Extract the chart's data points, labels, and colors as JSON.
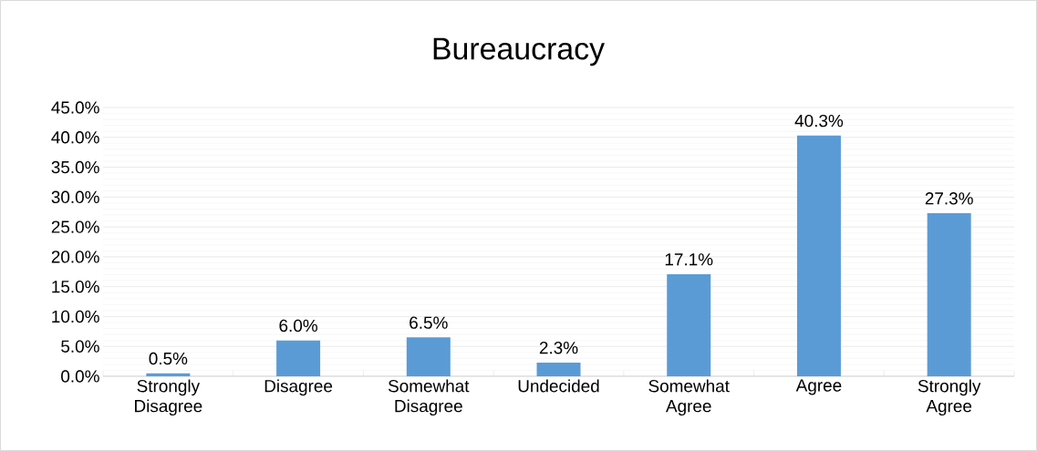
{
  "chart_data": {
    "type": "bar",
    "title": "Bureaucracy",
    "categories": [
      "Strongly Disagree",
      "Disagree",
      "Somewhat Disagree",
      "Undecided",
      "Somewhat Agree",
      "Agree",
      "Strongly Agree"
    ],
    "values": [
      0.5,
      6.0,
      6.5,
      2.3,
      17.1,
      40.3,
      27.3
    ],
    "value_labels": [
      "0.5%",
      "6.0%",
      "6.5%",
      "2.3%",
      "17.1%",
      "40.3%",
      "27.3%"
    ],
    "color": "#5b9bd5",
    "ylim": [
      0,
      45
    ],
    "yticks": [
      {
        "value": 0,
        "label": "0.0%"
      },
      {
        "value": 5,
        "label": "5.0%"
      },
      {
        "value": 10,
        "label": "10.0%"
      },
      {
        "value": 15,
        "label": "15.0%"
      },
      {
        "value": 20,
        "label": "20.0%"
      },
      {
        "value": 25,
        "label": "25.0%"
      },
      {
        "value": 30,
        "label": "30.0%"
      },
      {
        "value": 35,
        "label": "35.0%"
      },
      {
        "value": 40,
        "label": "40.0%"
      },
      {
        "value": 45,
        "label": "45.0%"
      }
    ],
    "grid": "y"
  }
}
